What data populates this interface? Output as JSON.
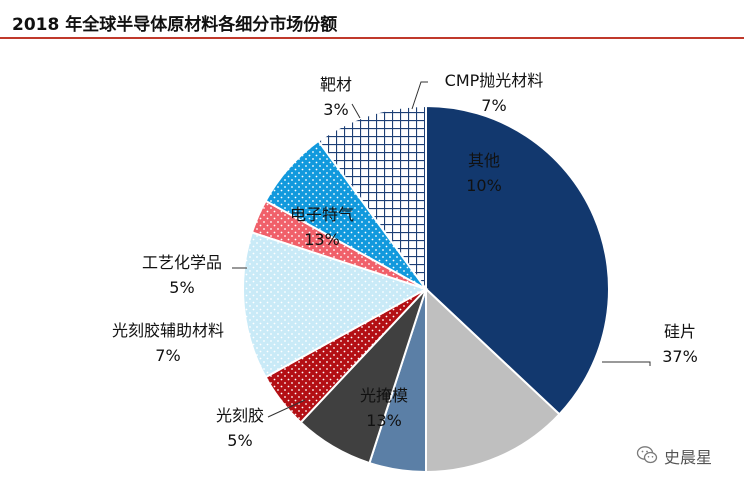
{
  "title": "2018 年全球半导体原材料各细分市场份额",
  "watermark": {
    "text": "史晨星",
    "icon": "wechat-icon"
  },
  "chart_data": {
    "type": "pie",
    "title": "2018 年全球半导体原材料各细分市场份额",
    "start_angle_deg": 0,
    "direction": "clockwise",
    "slices": [
      {
        "name": "硅片",
        "value": 37,
        "label": "37%",
        "color": "#12386e",
        "pattern": "solid"
      },
      {
        "name": "光掩模",
        "value": 13,
        "label": "13%",
        "color": "#bfbfbf",
        "pattern": "solid"
      },
      {
        "name": "光刻胶",
        "value": 5,
        "label": "5%",
        "color": "#5b7fa6",
        "pattern": "solid"
      },
      {
        "name": "光刻胶辅助材料",
        "value": 7,
        "label": "7%",
        "color": "#404040",
        "pattern": "solid"
      },
      {
        "name": "工艺化学品",
        "value": 5,
        "label": "5%",
        "color": "#b30f14",
        "pattern": "dots"
      },
      {
        "name": "电子特气",
        "value": 13,
        "label": "13%",
        "color": "#c9eaf7",
        "pattern": "dots"
      },
      {
        "name": "靶材",
        "value": 3,
        "label": "3%",
        "color": "#f0606a",
        "pattern": "dots"
      },
      {
        "name": "CMP抛光材料",
        "value": 7,
        "label": "7%",
        "color": "#1199dd",
        "pattern": "dots"
      },
      {
        "name": "其他",
        "value": 10,
        "label": "10%",
        "color": "#1d3f75",
        "pattern": "grid"
      }
    ]
  }
}
